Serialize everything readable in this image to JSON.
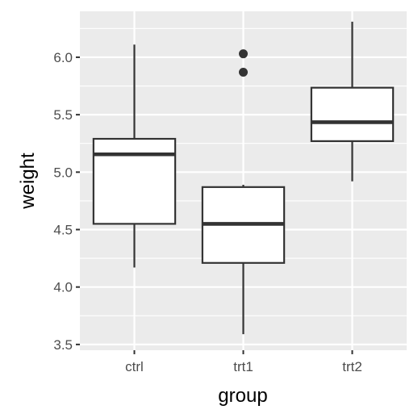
{
  "chart_data": {
    "type": "boxplot",
    "xlabel": "group",
    "ylabel": "weight",
    "ylim": [
      3.45,
      6.4
    ],
    "yticks": [
      3.5,
      4.0,
      4.5,
      5.0,
      5.5,
      6.0
    ],
    "ytick_labels": [
      "3.5",
      "4.0",
      "4.5",
      "5.0",
      "5.5",
      "6.0"
    ],
    "grid": true,
    "categories": [
      "ctrl",
      "trt1",
      "trt2"
    ],
    "boxes": [
      {
        "category": "ctrl",
        "whisker_low": 4.17,
        "q1": 4.55,
        "median": 5.155,
        "q3": 5.29,
        "whisker_high": 6.11,
        "outliers": []
      },
      {
        "category": "trt1",
        "whisker_low": 3.59,
        "q1": 4.21,
        "median": 4.55,
        "q3": 4.87,
        "whisker_high": 4.89,
        "outliers": [
          5.87,
          6.03
        ]
      },
      {
        "category": "trt2",
        "whisker_low": 4.92,
        "q1": 5.27,
        "median": 5.435,
        "q3": 5.735,
        "whisker_high": 6.31,
        "outliers": []
      }
    ],
    "colors": {
      "panel_background": "#ebebeb",
      "grid_major": "#ffffff",
      "box_fill": "#ffffff",
      "box_line": "#333333",
      "outlier": "#333333"
    }
  }
}
